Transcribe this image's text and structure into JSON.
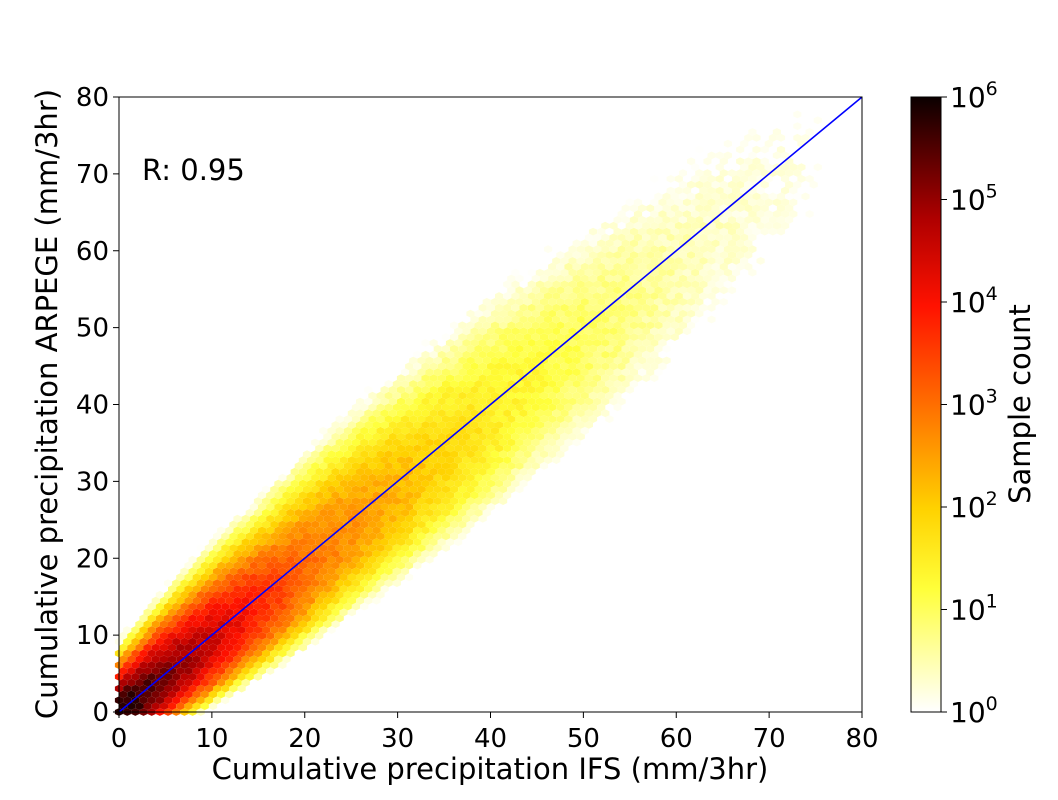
{
  "chart_data": {
    "type": "heatmap",
    "subtype": "hexbin",
    "title": "",
    "xlabel": "Cumulative precipitation IFS (mm/3hr)",
    "ylabel": "Cumulative precipitation ARPEGE (mm/3hr)",
    "xlim": [
      0,
      80
    ],
    "ylim": [
      0,
      80
    ],
    "xticks": [
      0,
      10,
      20,
      30,
      40,
      50,
      60,
      70,
      80
    ],
    "yticks": [
      0,
      10,
      20,
      30,
      40,
      50,
      60,
      70,
      80
    ],
    "grid": false,
    "annotation": "R: 0.95",
    "reference_line": {
      "type": "identity",
      "x": [
        0,
        80
      ],
      "y": [
        0,
        80
      ],
      "color": "#0000ff"
    },
    "colorbar": {
      "label": "Sample count",
      "scale": "log",
      "colormap": "hot_r",
      "range": [
        1,
        1000000
      ],
      "tick_bases": [
        "10",
        "10",
        "10",
        "10",
        "10",
        "10",
        "10"
      ],
      "tick_exponents": [
        "0",
        "1",
        "2",
        "3",
        "4",
        "5",
        "6"
      ]
    },
    "density_model": {
      "description": "log10 sample count along the identity line decays with precipitation; spread grows with precipitation",
      "peak_log10_count": 6,
      "count_at_0": 1000000,
      "count_at_20": 1000,
      "count_at_40": 30,
      "count_at_60": 3,
      "count_at_75": 1
    }
  },
  "colors": {
    "identity_line": "#0000ff",
    "axes": "#000000",
    "background": "#ffffff"
  }
}
